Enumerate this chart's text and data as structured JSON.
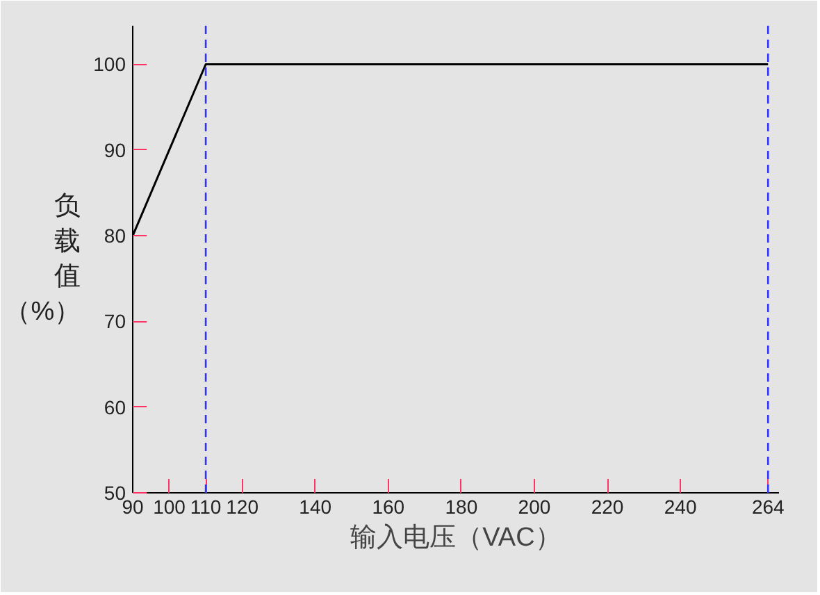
{
  "chart_data": {
    "type": "line",
    "xlabel": "输入电压（VAC）",
    "ylabel": "负载值（%）",
    "x": [
      90,
      110,
      264
    ],
    "series": [
      {
        "color": "#000000",
        "values": [
          80,
          100,
          100
        ]
      }
    ],
    "xlim": [
      90,
      267
    ],
    "xticks": [
      90,
      100,
      110,
      120,
      140,
      160,
      180,
      200,
      220,
      240,
      264
    ],
    "ylim": [
      50,
      104.5
    ],
    "yticks": [
      50,
      60,
      70,
      80,
      90,
      100
    ],
    "ref_lines": [
      {
        "axis": "x",
        "value": 110,
        "color": "#3333ff",
        "line_style": "dashed"
      },
      {
        "axis": "x",
        "value": 264,
        "color": "#3333ff",
        "line_style": "dashed"
      }
    ],
    "marker": "none",
    "line_style": "solid"
  }
}
